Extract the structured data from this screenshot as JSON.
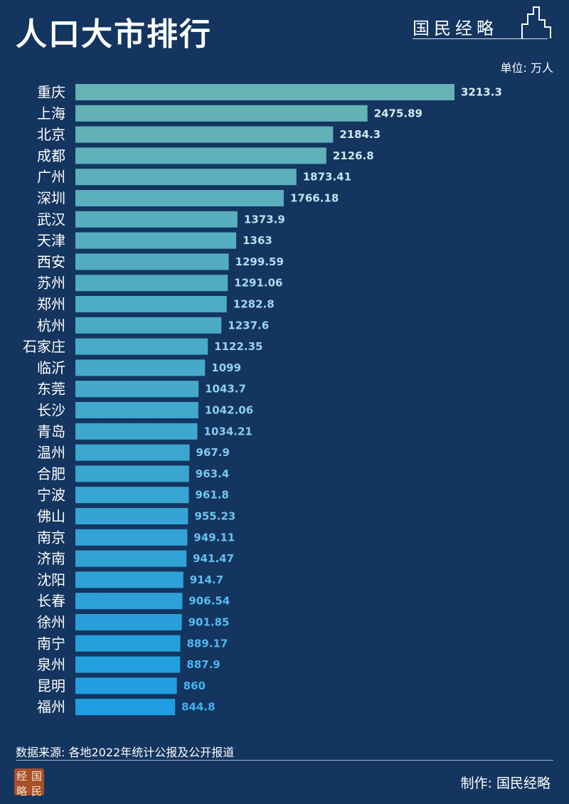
{
  "header": {
    "title": "人口大市排行",
    "brand": "国民经略",
    "unit": "单位: 万人"
  },
  "footer": {
    "source": "数据来源: 各地2022年统计公报及公开报道",
    "credit": "制作:  国民经略",
    "seal_chars": [
      "经",
      "国",
      "略",
      "民"
    ]
  },
  "colors": {
    "background": "#13355f",
    "bar_top": "#67b3b4",
    "bar_bottom": "#1e9de2",
    "value_top": "#d8eef0",
    "value_bottom": "#3fb2f0"
  },
  "chart_data": {
    "type": "bar",
    "orientation": "horizontal",
    "categories": [
      "重庆",
      "上海",
      "北京",
      "成都",
      "广州",
      "深圳",
      "武汉",
      "天津",
      "西安",
      "苏州",
      "郑州",
      "杭州",
      "石家庄",
      "临沂",
      "东莞",
      "长沙",
      "青岛",
      "温州",
      "合肥",
      "宁波",
      "佛山",
      "南京",
      "济南",
      "沈阳",
      "长春",
      "徐州",
      "南宁",
      "泉州",
      "昆明",
      "福州"
    ],
    "values": [
      3213.3,
      2475.89,
      2184.3,
      2126.8,
      1873.41,
      1766.18,
      1373.9,
      1363,
      1299.59,
      1291.06,
      1282.8,
      1237.6,
      1122.35,
      1099,
      1043.7,
      1042.06,
      1034.21,
      967.9,
      963.4,
      961.8,
      955.23,
      949.11,
      941.47,
      914.7,
      906.54,
      901.85,
      889.17,
      887.9,
      860,
      844.8
    ],
    "value_labels": [
      "3213.3",
      "2475.89",
      "2184.3",
      "2126.8",
      "1873.41",
      "1766.18",
      "1373.9",
      "1363",
      "1299.59",
      "1291.06",
      "1282.8",
      "1237.6",
      "1122.35",
      "1099",
      "1043.7",
      "1042.06",
      "1034.21",
      "967.9",
      "963.4",
      "961.8",
      "955.23",
      "949.11",
      "941.47",
      "914.7",
      "906.54",
      "901.85",
      "889.17",
      "887.9",
      "860",
      "844.8"
    ],
    "title": "人口大市排行",
    "xlim": [
      0,
      3213.3
    ],
    "grid": false,
    "legend": "none"
  }
}
